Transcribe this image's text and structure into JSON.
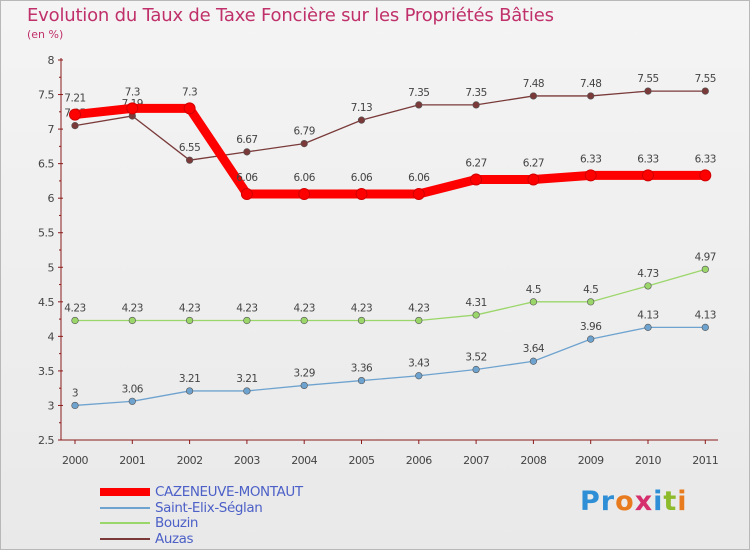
{
  "header": {
    "title": "Evolution du Taux de Taxe Foncière sur les Propriétés Bâties",
    "unit": "(en %)"
  },
  "logo": {
    "text": "Proxiti",
    "colors": [
      "#2f8fd6",
      "#2f8fd6",
      "#e87b1e",
      "#d62f6e",
      "#2f8fd6",
      "#8dbb2b",
      "#e87b1e"
    ]
  },
  "chart_data": {
    "type": "line",
    "title": "Evolution du Taux de Taxe Foncière sur les Propriétés Bâties",
    "ylabel": "(en %)",
    "xlabel": "",
    "ylim": [
      2.5,
      8
    ],
    "yticks": [
      "2.5",
      "3",
      "3.5",
      "4",
      "4.5",
      "5",
      "5.5",
      "6",
      "6.5",
      "7",
      "7.5",
      "8"
    ],
    "categories": [
      "2000",
      "2001",
      "2002",
      "2003",
      "2004",
      "2005",
      "2006",
      "2007",
      "2008",
      "2009",
      "2010",
      "2011"
    ],
    "series": [
      {
        "name": "CAZENEUVE-MONTAUT",
        "color": "#ff0000",
        "values": [
          7.21,
          7.3,
          7.3,
          6.06,
          6.06,
          6.06,
          6.06,
          6.27,
          6.27,
          6.33,
          6.33,
          6.33
        ],
        "labels": [
          "7.21",
          "7.3",
          "7.3",
          "6.06",
          "6.06",
          "6.06",
          "6.06",
          "6.27",
          "6.27",
          "6.33",
          "6.33",
          "6.33"
        ]
      },
      {
        "name": "Saint-Elix-Séglan",
        "color": "#6fa3cf",
        "values": [
          3,
          3.06,
          3.21,
          3.21,
          3.29,
          3.36,
          3.43,
          3.52,
          3.64,
          3.96,
          4.13,
          4.13
        ],
        "labels": [
          "3",
          "3.06",
          "3.21",
          "3.21",
          "3.29",
          "3.36",
          "3.43",
          "3.52",
          "3.64",
          "3.96",
          "4.13",
          "4.13"
        ]
      },
      {
        "name": "Bouzin",
        "color": "#9bd66a",
        "values": [
          4.23,
          4.23,
          4.23,
          4.23,
          4.23,
          4.23,
          4.23,
          4.31,
          4.5,
          4.5,
          4.73,
          4.97
        ],
        "labels": [
          "4.23",
          "4.23",
          "4.23",
          "4.23",
          "4.23",
          "4.23",
          "4.23",
          "4.31",
          "4.5",
          "4.5",
          "4.73",
          "4.97"
        ]
      },
      {
        "name": "Auzas",
        "color": "#7a3a3a",
        "values": [
          7.05,
          7.19,
          6.55,
          6.67,
          6.79,
          7.13,
          7.35,
          7.35,
          7.48,
          7.48,
          7.55,
          7.55
        ],
        "labels": [
          "7.05",
          "7.19",
          "6.55",
          "6.67",
          "6.79",
          "7.13",
          "7.35",
          "7.35",
          "7.48",
          "7.48",
          "7.55",
          "7.55"
        ]
      }
    ],
    "legend": "bottom-left",
    "grid": false
  }
}
